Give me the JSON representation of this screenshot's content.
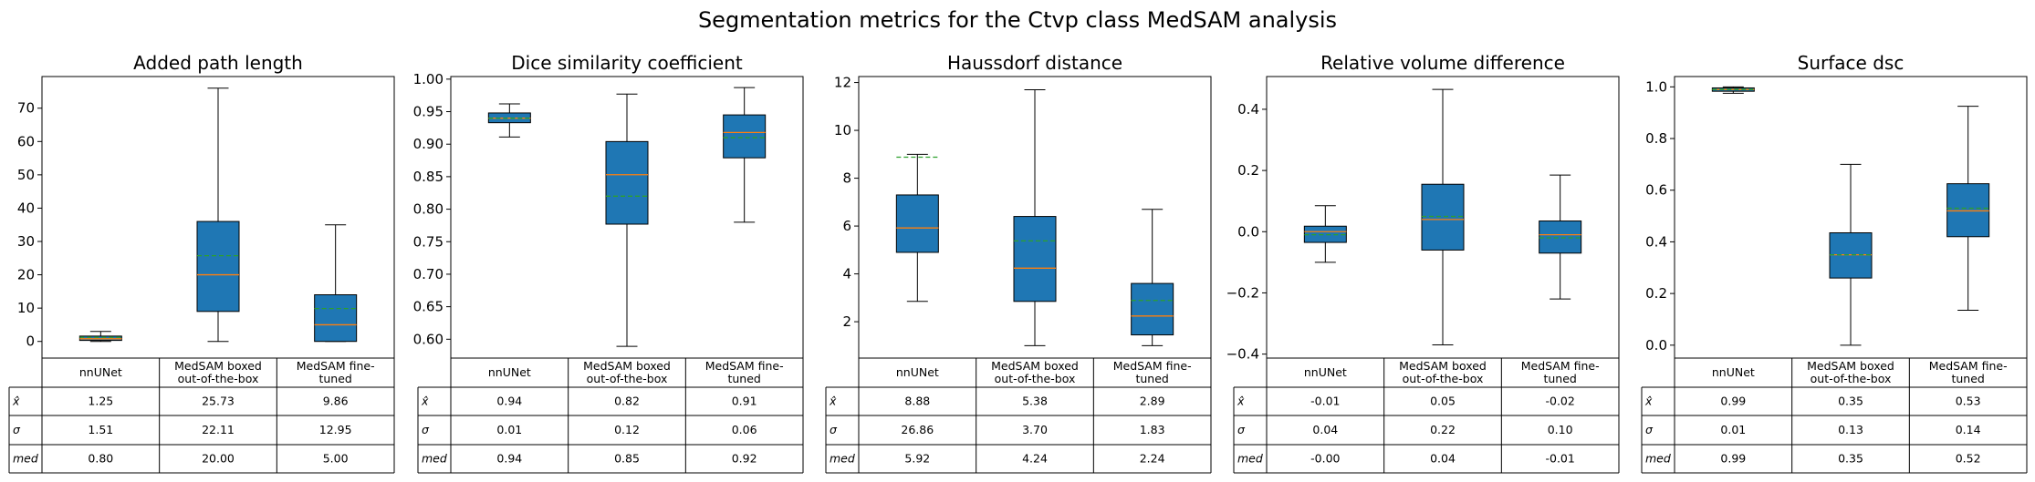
{
  "title": "Segmentation metrics for the Ctvp class MedSAM analysis",
  "colors": {
    "box_fill": "#1f77b4",
    "median_line": "#ff7f0e",
    "mean_line": "#2ca02c",
    "edge": "#000000"
  },
  "row_labels": [
    "x̂",
    "σ",
    "med"
  ],
  "chart_data": [
    {
      "type": "box",
      "title": "Added path length",
      "categories": [
        [
          "nnUNet"
        ],
        [
          "MedSAM boxed",
          "out-of-the-box"
        ],
        [
          "MedSAM fine-",
          "tuned"
        ]
      ],
      "ylim": [
        -5,
        79.5
      ],
      "yticks": [
        0,
        10,
        20,
        30,
        40,
        50,
        60,
        70
      ],
      "ytick_labels": [
        "0",
        "10",
        "20",
        "30",
        "40",
        "50",
        "60",
        "70"
      ],
      "boxes": [
        {
          "whislo": 0,
          "q1": 0.3,
          "med": 0.8,
          "q3": 1.6,
          "whishi": 3.0,
          "mean": 1.25
        },
        {
          "whislo": 0,
          "q1": 9,
          "med": 20,
          "q3": 36,
          "whishi": 76,
          "mean": 25.73
        },
        {
          "whislo": 0,
          "q1": 0,
          "med": 5,
          "q3": 14,
          "whishi": 35,
          "mean": 9.86
        }
      ],
      "table": [
        [
          "1.25",
          "25.73",
          "9.86"
        ],
        [
          "1.51",
          "22.11",
          "12.95"
        ],
        [
          "0.80",
          "20.00",
          "5.00"
        ]
      ]
    },
    {
      "type": "box",
      "title": "Dice similarity coefficient",
      "categories": [
        [
          "nnUNet"
        ],
        [
          "MedSAM boxed",
          "out-of-the-box"
        ],
        [
          "MedSAM fine-",
          "tuned"
        ]
      ],
      "ylim": [
        0.571,
        1.004
      ],
      "yticks": [
        0.6,
        0.65,
        0.7,
        0.75,
        0.8,
        0.85,
        0.9,
        0.95,
        1.0
      ],
      "ytick_labels": [
        "0.60",
        "0.65",
        "0.70",
        "0.75",
        "0.80",
        "0.85",
        "0.90",
        "0.95",
        "1.00"
      ],
      "boxes": [
        {
          "whislo": 0.911,
          "q1": 0.933,
          "med": 0.94,
          "q3": 0.948,
          "whishi": 0.962,
          "mean": 0.94
        },
        {
          "whislo": 0.589,
          "q1": 0.777,
          "med": 0.853,
          "q3": 0.904,
          "whishi": 0.977,
          "mean": 0.82
        },
        {
          "whislo": 0.78,
          "q1": 0.879,
          "med": 0.918,
          "q3": 0.945,
          "whishi": 0.987,
          "mean": 0.91
        }
      ],
      "table": [
        [
          "0.94",
          "0.82",
          "0.91"
        ],
        [
          "0.01",
          "0.12",
          "0.06"
        ],
        [
          "0.94",
          "0.85",
          "0.92"
        ]
      ]
    },
    {
      "type": "box",
      "title": "Haussdorf distance",
      "categories": [
        [
          "nnUNet"
        ],
        [
          "MedSAM boxed",
          "out-of-the-box"
        ],
        [
          "MedSAM fine-",
          "tuned"
        ]
      ],
      "ylim": [
        0.48,
        12.25
      ],
      "yticks": [
        2,
        4,
        6,
        8,
        10,
        12
      ],
      "ytick_labels": [
        "2",
        "4",
        "6",
        "8",
        "10",
        "12"
      ],
      "boxes": [
        {
          "whislo": 2.85,
          "q1": 4.9,
          "med": 5.92,
          "q3": 7.3,
          "whishi": 9.0,
          "mean": 8.88
        },
        {
          "whislo": 1.0,
          "q1": 2.85,
          "med": 4.24,
          "q3": 6.4,
          "whishi": 11.7,
          "mean": 5.38
        },
        {
          "whislo": 1.0,
          "q1": 1.45,
          "med": 2.24,
          "q3": 3.6,
          "whishi": 6.7,
          "mean": 2.89
        }
      ],
      "table": [
        [
          "8.88",
          "5.38",
          "2.89"
        ],
        [
          "26.86",
          "3.70",
          "1.83"
        ],
        [
          "5.92",
          "4.24",
          "2.24"
        ]
      ]
    },
    {
      "type": "box",
      "title": "Relative volume difference",
      "categories": [
        [
          "nnUNet"
        ],
        [
          "MedSAM boxed",
          "out-of-the-box"
        ],
        [
          "MedSAM fine-",
          "tuned"
        ]
      ],
      "ylim": [
        -0.413,
        0.507
      ],
      "yticks": [
        -0.4,
        -0.2,
        0.0,
        0.2,
        0.4
      ],
      "ytick_labels": [
        "−0.4",
        "−0.2",
        "0.0",
        "0.2",
        "0.4"
      ],
      "boxes": [
        {
          "whislo": -0.1,
          "q1": -0.035,
          "med": 0.0,
          "q3": 0.018,
          "whishi": 0.085,
          "mean": -0.01
        },
        {
          "whislo": -0.37,
          "q1": -0.06,
          "med": 0.04,
          "q3": 0.155,
          "whishi": 0.465,
          "mean": 0.05
        },
        {
          "whislo": -0.22,
          "q1": -0.07,
          "med": -0.01,
          "q3": 0.035,
          "whishi": 0.185,
          "mean": -0.02
        }
      ],
      "table": [
        [
          "-0.01",
          "0.05",
          "-0.02"
        ],
        [
          "0.04",
          "0.22",
          "0.10"
        ],
        [
          "-0.00",
          "0.04",
          "-0.01"
        ]
      ]
    },
    {
      "type": "box",
      "title": "Surface dsc",
      "categories": [
        [
          "nnUNet"
        ],
        [
          "MedSAM boxed",
          "out-of-the-box"
        ],
        [
          "MedSAM fine-",
          "tuned"
        ]
      ],
      "ylim": [
        -0.05,
        1.04
      ],
      "yticks": [
        0.0,
        0.2,
        0.4,
        0.6,
        0.8,
        1.0
      ],
      "ytick_labels": [
        "0.0",
        "0.2",
        "0.4",
        "0.6",
        "0.8",
        "1.0"
      ],
      "boxes": [
        {
          "whislo": 0.975,
          "q1": 0.983,
          "med": 0.99,
          "q3": 0.996,
          "whishi": 1.0,
          "mean": 0.99
        },
        {
          "whislo": 0.0,
          "q1": 0.26,
          "med": 0.35,
          "q3": 0.435,
          "whishi": 0.7,
          "mean": 0.35
        },
        {
          "whislo": 0.135,
          "q1": 0.42,
          "med": 0.52,
          "q3": 0.625,
          "whishi": 0.925,
          "mean": 0.53
        }
      ],
      "table": [
        [
          "0.99",
          "0.35",
          "0.53"
        ],
        [
          "0.01",
          "0.13",
          "0.14"
        ],
        [
          "0.99",
          "0.35",
          "0.52"
        ]
      ]
    }
  ]
}
